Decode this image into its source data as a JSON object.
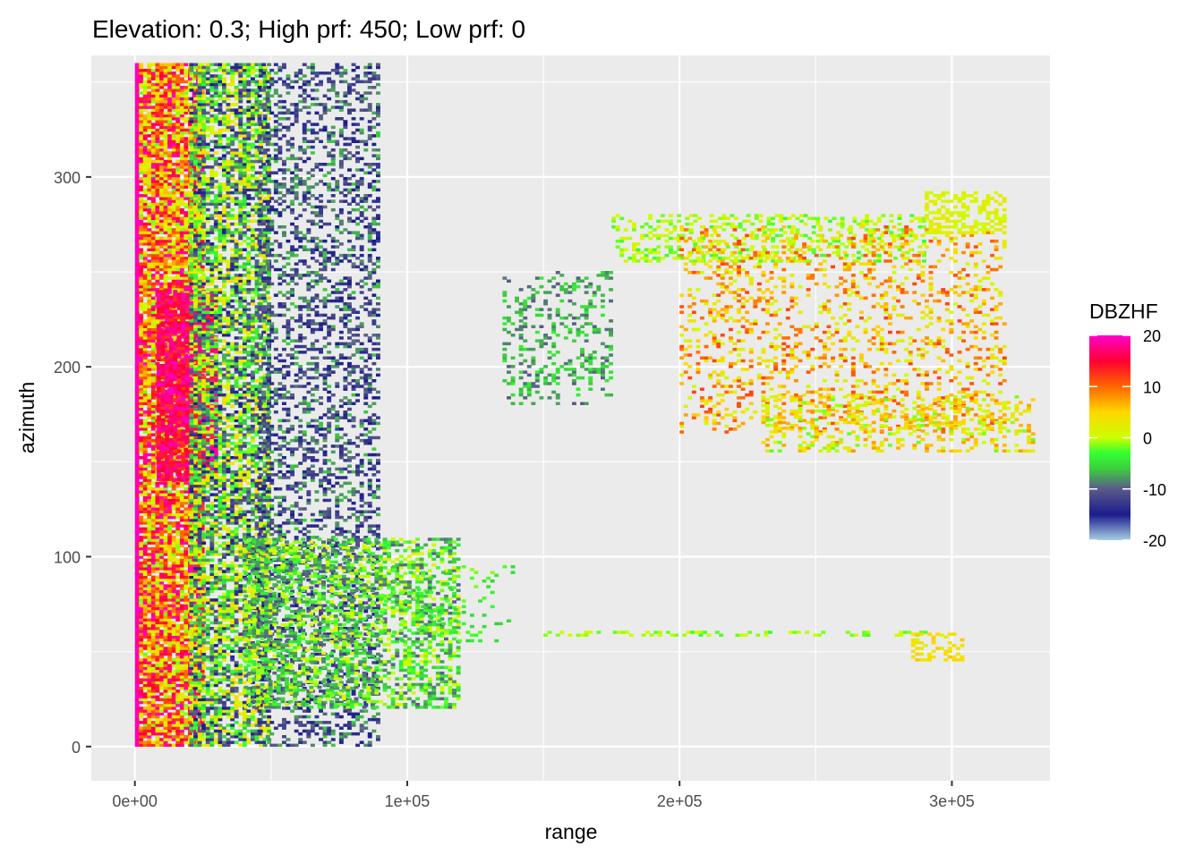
{
  "chart_data": {
    "type": "heatmap",
    "title": "Elevation: 0.3; High prf: 450; Low prf: 0",
    "xlabel": "range",
    "ylabel": "azimuth",
    "xlim": [
      -16000,
      336000
    ],
    "ylim": [
      -18,
      364
    ],
    "x_ticks": [
      {
        "value": 0,
        "label": "0e+00"
      },
      {
        "value": 100000,
        "label": "1e+05"
      },
      {
        "value": 200000,
        "label": "2e+05"
      },
      {
        "value": 300000,
        "label": "3e+05"
      }
    ],
    "y_ticks": [
      {
        "value": 0,
        "label": "0"
      },
      {
        "value": 100,
        "label": "100"
      },
      {
        "value": 200,
        "label": "200"
      },
      {
        "value": 300,
        "label": "300"
      }
    ],
    "grid": true,
    "legend": {
      "title": "DBZHF",
      "position": "right",
      "range": [
        -20,
        20
      ],
      "ticks": [
        {
          "value": 20,
          "label": "20"
        },
        {
          "value": 10,
          "label": "10"
        },
        {
          "value": 0,
          "label": "0"
        },
        {
          "value": -10,
          "label": "-10"
        },
        {
          "value": -20,
          "label": "-20"
        }
      ],
      "colors": [
        {
          "value": -20,
          "color": "#a6cee3"
        },
        {
          "value": -15,
          "color": "#1c1c8c"
        },
        {
          "value": -10,
          "color": "#5a5a8a"
        },
        {
          "value": -6,
          "color": "#3ccf3c"
        },
        {
          "value": -3,
          "color": "#33ff33"
        },
        {
          "value": 0,
          "color": "#ccff00"
        },
        {
          "value": 5,
          "color": "#ffd700"
        },
        {
          "value": 10,
          "color": "#ff6600"
        },
        {
          "value": 15,
          "color": "#ff0033"
        },
        {
          "value": 20,
          "color": "#ff00cc"
        }
      ]
    },
    "regions": [
      {
        "range": [
          0,
          1500
        ],
        "azimuth": [
          0,
          360
        ],
        "density": 1.0,
        "dbz": [
          18,
          20
        ]
      },
      {
        "range": [
          1500,
          25000
        ],
        "azimuth": [
          0,
          360
        ],
        "density": 0.9,
        "dbz": [
          -2,
          20
        ]
      },
      {
        "range": [
          8000,
          30000
        ],
        "azimuth": [
          140,
          240
        ],
        "density": 0.85,
        "dbz": [
          12,
          20
        ]
      },
      {
        "range": [
          20000,
          50000
        ],
        "azimuth": [
          0,
          360
        ],
        "density": 0.7,
        "dbz": [
          -15,
          5
        ]
      },
      {
        "range": [
          45000,
          90000
        ],
        "azimuth": [
          0,
          360
        ],
        "density": 0.35,
        "dbz": [
          -16,
          -6
        ]
      },
      {
        "range": [
          40000,
          120000
        ],
        "azimuth": [
          20,
          110
        ],
        "density": 0.5,
        "dbz": [
          -10,
          2
        ]
      },
      {
        "range": [
          90000,
          140000
        ],
        "azimuth": [
          55,
          95
        ],
        "density": 0.1,
        "dbz": [
          -6,
          -1
        ]
      },
      {
        "range": [
          135000,
          175000
        ],
        "azimuth": [
          180,
          250
        ],
        "density": 0.25,
        "dbz": [
          -10,
          -4
        ]
      },
      {
        "range": [
          175000,
          290000
        ],
        "azimuth": [
          255,
          280
        ],
        "density": 0.3,
        "dbz": [
          -3,
          2
        ]
      },
      {
        "range": [
          200000,
          320000
        ],
        "azimuth": [
          165,
          275
        ],
        "density": 0.22,
        "dbz": [
          0,
          12
        ]
      },
      {
        "range": [
          230000,
          330000
        ],
        "azimuth": [
          155,
          185
        ],
        "density": 0.3,
        "dbz": [
          -2,
          8
        ]
      },
      {
        "range": [
          290000,
          320000
        ],
        "azimuth": [
          270,
          292
        ],
        "density": 0.45,
        "dbz": [
          0,
          3
        ]
      },
      {
        "range": [
          150000,
          300000
        ],
        "azimuth": [
          58,
          61
        ],
        "density": 0.3,
        "dbz": [
          -3,
          1
        ]
      },
      {
        "range": [
          285000,
          305000
        ],
        "azimuth": [
          45,
          60
        ],
        "density": 0.35,
        "dbz": [
          2,
          6
        ]
      }
    ]
  }
}
